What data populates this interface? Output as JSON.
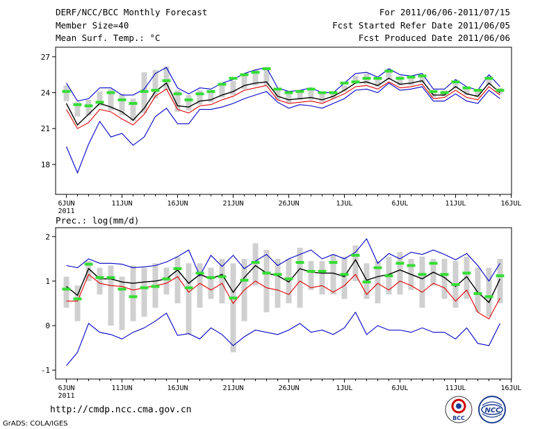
{
  "header": {
    "title": "DERF/NCC/BCC Monthly Forecast",
    "member_size": "Member Size=40",
    "variable": "Mean Surf. Temp.: °C",
    "period": "For 2011/06/06-2011/07/15",
    "started": "Fcst Started Refer Date 2011/06/05",
    "produced": "Fcst Produced Date 2011/06/06"
  },
  "footer": {
    "url": "http://cmdp.ncc.cma.gov.cn",
    "grads": "GrADS: COLA/IGES",
    "logo_bcc": "BCC",
    "logo_ncc": "NCC"
  },
  "colors": {
    "envelope": "#0000c8",
    "mean": "#000000",
    "median": "#e00000",
    "box": "#d0d0d0",
    "marker": "#33dd33"
  },
  "chart_data": [
    {
      "type": "line",
      "title": "Mean Surf. Temp.: °C",
      "x_tick_labels": [
        "6JUN",
        "11JUN",
        "16JUN",
        "21JUN",
        "26JUN",
        "1JUL",
        "6JUL",
        "11JUL",
        "16JUL"
      ],
      "x_year_label": "2011",
      "ylim": [
        15.5,
        27.8
      ],
      "yticks": [
        18,
        21,
        24,
        27
      ],
      "series": [
        {
          "name": "max",
          "values": [
            24.8,
            23.3,
            23.5,
            24.4,
            24.4,
            23.8,
            23.8,
            24.3,
            25.6,
            26.1,
            24.4,
            23.9,
            24.4,
            24.3,
            24.8,
            25.1,
            25.6,
            25.9,
            26.1,
            24.4,
            24.1,
            24.2,
            24.4,
            24.0,
            24.0,
            24.8,
            25.6,
            25.7,
            25.3,
            26.0,
            25.5,
            25.4,
            25.6,
            24.3,
            24.3,
            25.1,
            24.5,
            24.2,
            25.5,
            24.5
          ]
        },
        {
          "name": "mean",
          "values": [
            23.1,
            21.3,
            22.2,
            23.1,
            22.8,
            22.4,
            21.7,
            22.7,
            24.1,
            24.8,
            22.9,
            22.8,
            23.3,
            23.4,
            23.8,
            24.1,
            24.6,
            24.8,
            24.9,
            23.7,
            23.4,
            23.5,
            23.6,
            23.4,
            23.7,
            24.2,
            24.8,
            24.9,
            24.6,
            25.2,
            24.7,
            24.8,
            25.0,
            23.8,
            23.8,
            24.5,
            23.9,
            23.7,
            24.8,
            24.0
          ]
        },
        {
          "name": "median",
          "values": [
            22.6,
            21.0,
            21.5,
            22.6,
            22.4,
            21.8,
            21.3,
            22.2,
            23.7,
            24.3,
            22.6,
            22.3,
            22.9,
            23.0,
            23.4,
            23.7,
            24.2,
            24.4,
            24.6,
            23.4,
            23.1,
            23.2,
            23.3,
            23.1,
            23.5,
            23.9,
            24.5,
            24.6,
            24.3,
            24.9,
            24.4,
            24.5,
            24.7,
            23.5,
            23.6,
            24.2,
            23.6,
            23.4,
            24.5,
            23.8
          ]
        },
        {
          "name": "min",
          "values": [
            19.5,
            17.3,
            19.7,
            21.6,
            20.3,
            20.6,
            19.6,
            20.3,
            22.0,
            22.7,
            21.4,
            21.4,
            22.6,
            22.6,
            22.8,
            23.1,
            23.5,
            23.8,
            24.1,
            23.2,
            22.7,
            23.0,
            22.9,
            22.7,
            23.1,
            23.5,
            24.2,
            24.3,
            24.0,
            24.8,
            24.2,
            24.3,
            24.5,
            23.3,
            23.3,
            23.9,
            23.3,
            23.1,
            24.2,
            23.5
          ]
        },
        {
          "name": "member_marker",
          "values": [
            24.1,
            23.0,
            22.9,
            23.2,
            24.0,
            23.4,
            23.1,
            24.1,
            24.2,
            25.0,
            23.9,
            23.4,
            23.9,
            24.1,
            24.7,
            25.2,
            25.5,
            25.7,
            26.0,
            24.3,
            24.0,
            24.1,
            24.3,
            24.0,
            24.0,
            24.8,
            24.9,
            25.2,
            25.2,
            25.8,
            25.2,
            25.3,
            25.4,
            24.1,
            24.0,
            24.9,
            24.4,
            24.2,
            25.2,
            24.2
          ]
        },
        {
          "name": "box_low",
          "values": [
            23.3,
            22.0,
            22.1,
            22.9,
            22.5,
            22.1,
            21.6,
            22.3,
            23.5,
            24.2,
            22.4,
            22.5,
            23.0,
            23.2,
            23.6,
            23.8,
            24.3,
            24.6,
            24.6,
            23.4,
            23.1,
            23.4,
            23.4,
            23.2,
            23.5,
            24.1,
            24.8,
            24.7,
            24.5,
            25.1,
            24.6,
            24.6,
            24.8,
            23.6,
            23.7,
            24.4,
            23.8,
            23.6,
            24.6,
            23.9
          ]
        },
        {
          "name": "box_high",
          "values": [
            24.6,
            23.2,
            23.4,
            24.1,
            24.3,
            23.9,
            23.5,
            25.7,
            25.9,
            26.2,
            24.2,
            23.8,
            24.2,
            24.2,
            24.6,
            25.0,
            25.5,
            25.9,
            25.9,
            24.3,
            24.0,
            24.0,
            24.2,
            24.0,
            23.9,
            24.6,
            25.4,
            25.6,
            25.3,
            26.0,
            25.4,
            25.4,
            25.5,
            24.1,
            24.2,
            25.0,
            24.5,
            24.1,
            25.4,
            24.4
          ]
        }
      ]
    },
    {
      "type": "line",
      "title": "Prec.: log(mm/d)",
      "x_tick_labels": [
        "6JUN",
        "11JUN",
        "16JUN",
        "21JUN",
        "26JUN",
        "1JUL",
        "6JUL",
        "11JUL",
        "16JUL"
      ],
      "x_year_label": "2011",
      "ylim": [
        -1.2,
        2.2
      ],
      "yticks": [
        -1,
        0,
        1,
        2
      ],
      "series": [
        {
          "name": "max",
          "values": [
            1.35,
            1.3,
            1.5,
            1.4,
            1.4,
            1.38,
            1.3,
            1.32,
            1.35,
            1.43,
            1.55,
            1.7,
            1.12,
            1.58,
            1.33,
            1.58,
            1.28,
            1.45,
            1.6,
            1.35,
            1.5,
            1.6,
            1.7,
            1.5,
            1.6,
            1.5,
            1.65,
            1.95,
            1.4,
            1.62,
            1.5,
            1.65,
            1.6,
            1.7,
            1.6,
            1.48,
            1.62,
            1.35,
            1.0,
            1.4
          ]
        },
        {
          "name": "mean",
          "values": [
            0.88,
            0.68,
            1.28,
            1.05,
            1.05,
            0.98,
            0.95,
            0.98,
            1.0,
            1.05,
            1.25,
            0.95,
            1.15,
            1.05,
            1.15,
            0.75,
            1.08,
            1.35,
            1.18,
            1.12,
            0.98,
            1.28,
            1.2,
            1.18,
            1.18,
            1.1,
            1.48,
            1.02,
            1.1,
            1.15,
            1.25,
            1.15,
            1.05,
            1.2,
            1.08,
            0.88,
            1.1,
            0.75,
            0.52,
            1.05
          ]
        },
        {
          "name": "median",
          "values": [
            0.55,
            0.55,
            1.15,
            0.95,
            0.9,
            0.88,
            0.8,
            0.85,
            0.9,
            0.95,
            1.1,
            0.75,
            0.95,
            0.8,
            0.95,
            0.5,
            0.8,
            1.0,
            0.85,
            0.8,
            0.7,
            1.0,
            0.85,
            0.9,
            0.75,
            0.9,
            1.15,
            0.7,
            0.95,
            0.8,
            1.0,
            0.9,
            0.75,
            0.95,
            0.85,
            0.55,
            0.8,
            0.3,
            0.15,
            0.62
          ]
        },
        {
          "name": "min",
          "values": [
            -0.9,
            -0.6,
            0.05,
            -0.15,
            -0.2,
            -0.3,
            -0.15,
            -0.05,
            0.1,
            0.28,
            -0.22,
            -0.18,
            -0.3,
            -0.05,
            -0.2,
            -0.45,
            -0.25,
            -0.1,
            -0.15,
            -0.2,
            -0.1,
            0.05,
            -0.15,
            -0.1,
            -0.2,
            -0.05,
            0.3,
            -0.2,
            0.0,
            -0.1,
            -0.1,
            -0.15,
            -0.05,
            -0.15,
            -0.15,
            -0.3,
            -0.05,
            -0.4,
            -0.45,
            0.05
          ]
        },
        {
          "name": "member_marker",
          "values": [
            0.82,
            0.6,
            1.38,
            1.08,
            1.08,
            0.82,
            0.65,
            0.85,
            0.88,
            1.05,
            1.28,
            0.85,
            1.18,
            1.08,
            1.1,
            0.62,
            1.02,
            1.42,
            1.18,
            1.15,
            1.05,
            1.42,
            1.22,
            1.22,
            1.42,
            1.15,
            1.58,
            0.98,
            1.3,
            1.12,
            1.4,
            1.35,
            1.15,
            1.4,
            1.15,
            0.92,
            1.18,
            0.72,
            0.65,
            1.12
          ]
        },
        {
          "name": "box_low",
          "values": [
            0.4,
            0.1,
            1.0,
            0.7,
            0.0,
            -0.1,
            0.1,
            0.2,
            0.4,
            0.7,
            0.5,
            -0.2,
            0.4,
            0.6,
            0.5,
            -0.6,
            0.1,
            0.9,
            0.3,
            0.4,
            0.5,
            0.4,
            0.8,
            0.7,
            0.7,
            0.6,
            1.0,
            0.6,
            0.5,
            0.7,
            0.7,
            0.8,
            0.4,
            0.9,
            0.6,
            0.4,
            0.6,
            0.3,
            0.2,
            0.5
          ]
        },
        {
          "name": "box_high",
          "values": [
            1.1,
            0.9,
            1.45,
            1.3,
            1.35,
            1.1,
            1.35,
            1.3,
            1.4,
            1.3,
            1.55,
            1.4,
            1.4,
            1.3,
            1.5,
            1.4,
            1.5,
            1.85,
            1.7,
            1.5,
            1.5,
            1.75,
            1.45,
            1.45,
            1.6,
            1.55,
            1.8,
            1.4,
            1.45,
            1.55,
            1.65,
            1.5,
            1.55,
            1.5,
            1.5,
            1.45,
            1.55,
            1.3,
            1.3,
            1.5
          ]
        }
      ]
    }
  ]
}
